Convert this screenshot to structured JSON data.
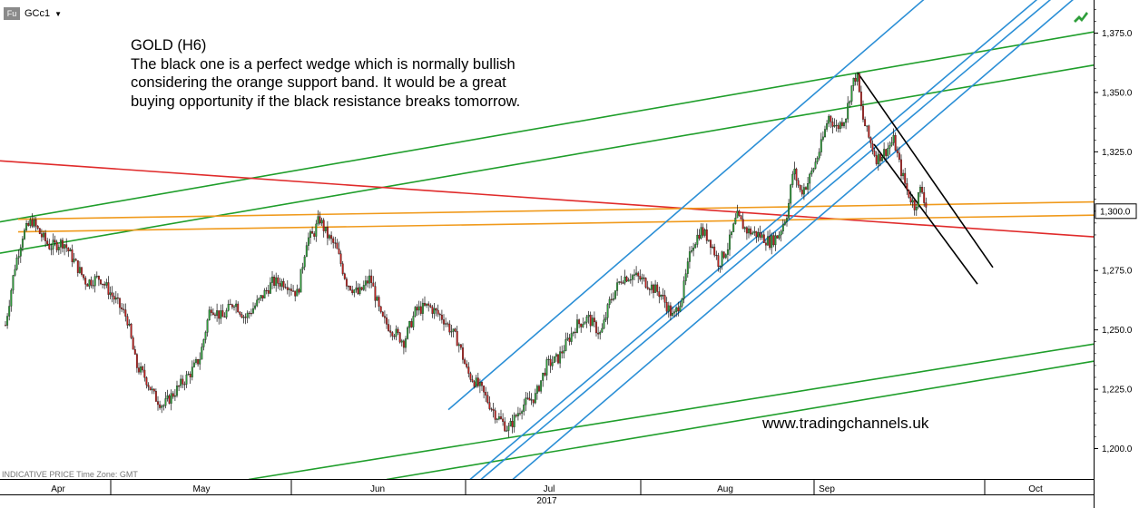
{
  "header": {
    "symbol_icon": "Fu",
    "symbol": "GCc1",
    "dropdown_icon": "caret-down-icon",
    "status_icon": "trend-arrow-icon"
  },
  "annotation": {
    "title": "GOLD (H6)",
    "body": "The black one is a perfect wedge which is normally bullish considering the orange support band. It would be a great buying opportunity if the black resistance breaks tomorrow."
  },
  "website": "www.tradingchannels.uk",
  "footnote": "INDICATIVE PRICE   Time Zone: GMT",
  "chart_data": {
    "type": "candlestick",
    "instrument": "GCc1",
    "y_range": [
      1185,
      1395
    ],
    "y_ticks": [
      1200,
      1225,
      1250,
      1275,
      1300,
      1325,
      1350,
      1375
    ],
    "y_tick_labels": [
      "1,200.0",
      "1,225.0",
      "1,250.0",
      "1,275.0",
      "1,300.0",
      "1,325.0",
      "1,350.0",
      "1,375.0"
    ],
    "current_price": 1300,
    "current_price_label": "1,300.0",
    "x_axis": {
      "year_label": "2017",
      "months": [
        {
          "label": "Apr",
          "label_x": 64,
          "sep_x": 122
        },
        {
          "label": "May",
          "label_x": 222,
          "sep_x": 321
        },
        {
          "label": "Jun",
          "label_x": 416,
          "sep_x": 513
        },
        {
          "label": "Jul",
          "label_x": 605,
          "sep_x": 706
        },
        {
          "label": "Aug",
          "label_x": 799,
          "sep_x": 897
        },
        {
          "label": "Sep",
          "label_x": 911,
          "sep_x": 1085
        },
        {
          "label": "Oct",
          "label_x": 1141,
          "sep_x": null
        }
      ]
    },
    "price_path": [
      [
        6,
        1252
      ],
      [
        16,
        1276
      ],
      [
        25,
        1290
      ],
      [
        35,
        1296
      ],
      [
        45,
        1290
      ],
      [
        55,
        1285
      ],
      [
        70,
        1287
      ],
      [
        80,
        1280
      ],
      [
        95,
        1270
      ],
      [
        110,
        1272
      ],
      [
        128,
        1262
      ],
      [
        140,
        1255
      ],
      [
        150,
        1235
      ],
      [
        160,
        1230
      ],
      [
        170,
        1222
      ],
      [
        180,
        1218
      ],
      [
        195,
        1225
      ],
      [
        210,
        1232
      ],
      [
        220,
        1238
      ],
      [
        232,
        1260
      ],
      [
        245,
        1255
      ],
      [
        258,
        1262
      ],
      [
        270,
        1255
      ],
      [
        285,
        1262
      ],
      [
        300,
        1270
      ],
      [
        315,
        1270
      ],
      [
        328,
        1265
      ],
      [
        338,
        1288
      ],
      [
        345,
        1290
      ],
      [
        352,
        1297
      ],
      [
        360,
        1290
      ],
      [
        370,
        1285
      ],
      [
        382,
        1270
      ],
      [
        395,
        1265
      ],
      [
        408,
        1272
      ],
      [
        420,
        1255
      ],
      [
        432,
        1250
      ],
      [
        445,
        1245
      ],
      [
        458,
        1258
      ],
      [
        472,
        1260
      ],
      [
        488,
        1255
      ],
      [
        505,
        1245
      ],
      [
        515,
        1232
      ],
      [
        530,
        1225
      ],
      [
        545,
        1215
      ],
      [
        560,
        1208
      ],
      [
        575,
        1218
      ],
      [
        590,
        1222
      ],
      [
        602,
        1235
      ],
      [
        615,
        1238
      ],
      [
        625,
        1245
      ],
      [
        635,
        1252
      ],
      [
        648,
        1255
      ],
      [
        662,
        1248
      ],
      [
        672,
        1262
      ],
      [
        685,
        1272
      ],
      [
        698,
        1273
      ],
      [
        712,
        1270
      ],
      [
        728,
        1265
      ],
      [
        742,
        1255
      ],
      [
        752,
        1265
      ],
      [
        762,
        1285
      ],
      [
        772,
        1292
      ],
      [
        782,
        1288
      ],
      [
        792,
        1278
      ],
      [
        802,
        1285
      ],
      [
        812,
        1298
      ],
      [
        822,
        1292
      ],
      [
        836,
        1290
      ],
      [
        848,
        1287
      ],
      [
        858,
        1290
      ],
      [
        868,
        1300
      ],
      [
        874,
        1318
      ],
      [
        882,
        1308
      ],
      [
        890,
        1312
      ],
      [
        898,
        1320
      ],
      [
        905,
        1328
      ],
      [
        913,
        1340
      ],
      [
        922,
        1335
      ],
      [
        932,
        1340
      ],
      [
        938,
        1352
      ],
      [
        944,
        1358
      ],
      [
        950,
        1340
      ],
      [
        958,
        1330
      ],
      [
        966,
        1322
      ],
      [
        975,
        1325
      ],
      [
        985,
        1330
      ],
      [
        992,
        1318
      ],
      [
        1000,
        1308
      ],
      [
        1008,
        1302
      ],
      [
        1015,
        1310
      ],
      [
        1022,
        1300
      ]
    ],
    "trendlines": [
      {
        "color": "#1f9e2b",
        "x1": 0,
        "y1": 1295.5,
        "x2": 1205,
        "y2": 1375.5
      },
      {
        "color": "#1f9e2b",
        "x1": 0,
        "y1": 1282.3,
        "x2": 1205,
        "y2": 1361.5
      },
      {
        "color": "#1f9e2b",
        "x1": 274,
        "y1": 1187,
        "x2": 1205,
        "y2": 1244
      },
      {
        "color": "#1f9e2b",
        "x1": 426,
        "y1": 1187,
        "x2": 1205,
        "y2": 1236.8
      },
      {
        "color": "#e02b2b",
        "x1": 0,
        "y1": 1321.2,
        "x2": 1205,
        "y2": 1289.2
      },
      {
        "color": "#f09a1c",
        "x1": 20,
        "y1": 1296.6,
        "x2": 1205,
        "y2": 1303.9
      },
      {
        "color": "#f09a1c",
        "x1": 20,
        "y1": 1291.3,
        "x2": 1205,
        "y2": 1298.3
      },
      {
        "color": "#2b8fd6",
        "x1": 494,
        "y1": 1216.4,
        "x2": 1035,
        "y2": 1394.8
      },
      {
        "color": "#2b8fd6",
        "x1": 518,
        "y1": 1187,
        "x2": 1160,
        "y2": 1394.8
      },
      {
        "color": "#2b8fd6",
        "x1": 530,
        "y1": 1187,
        "x2": 1175,
        "y2": 1394.8
      },
      {
        "color": "#2b8fd6",
        "x1": 565,
        "y1": 1187,
        "x2": 1192,
        "y2": 1392.3
      },
      {
        "color": "#000000",
        "x1": 945,
        "y1": 1358.3,
        "x2": 1094,
        "y2": 1276.3
      },
      {
        "color": "#000000",
        "x1": 963,
        "y1": 1328.2,
        "x2": 1077,
        "y2": 1269.3
      }
    ]
  }
}
